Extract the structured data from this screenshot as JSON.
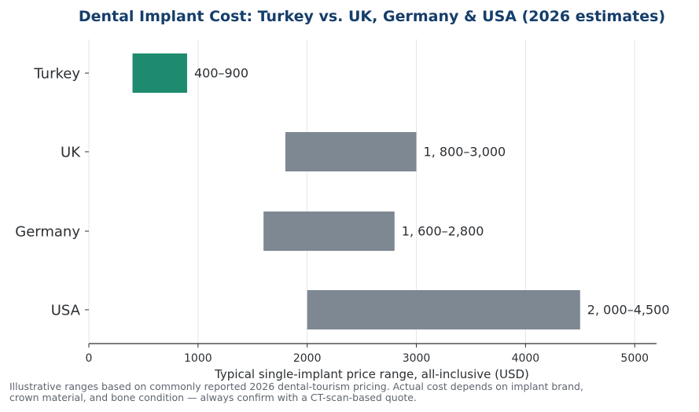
{
  "chart_data": {
    "type": "bar",
    "orientation": "horizontal-range",
    "title": "Dental Implant Cost: Turkey vs. UK, Germany & USA (2026 estimates)",
    "xlabel": "Typical single-implant price range, all-inclusive (USD)",
    "ylabel": "",
    "xlim": [
      0,
      5200
    ],
    "xticks": [
      0,
      1000,
      2000,
      3000,
      4000,
      5000
    ],
    "grid": "vertical",
    "categories": [
      "Turkey",
      "UK",
      "Germany",
      "USA"
    ],
    "ranges": [
      {
        "category": "Turkey",
        "min": 400,
        "max": 900,
        "label": "400–900",
        "color": "#1e8b6e"
      },
      {
        "category": "UK",
        "min": 1800,
        "max": 3000,
        "label": "1, 800–3,000",
        "color": "#7d8893"
      },
      {
        "category": "Germany",
        "min": 1600,
        "max": 2800,
        "label": "1, 600–2,800",
        "color": "#7d8893"
      },
      {
        "category": "USA",
        "min": 2000,
        "max": 4500,
        "label": "2, 000–4,500",
        "color": "#7d8893"
      }
    ]
  },
  "footnote": "Illustrative ranges based on commonly reported 2026 dental-tourism pricing. Actual cost depends on implant brand, crown material, and bone condition — always confirm with a CT-scan-based quote."
}
